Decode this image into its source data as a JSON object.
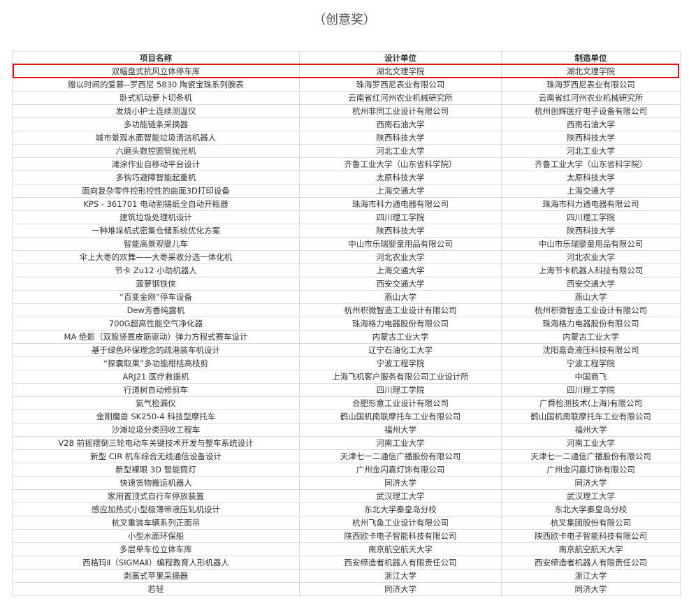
{
  "title": "（创意奖）",
  "highlight_color": "#e01010",
  "table": {
    "headers": [
      "项目名称",
      "设计单位",
      "制造单位"
    ],
    "highlighted_row": 0,
    "rows": [
      [
        "双幅盘式抗风立体停车库",
        "湖北文理学院",
        "湖北文理学院"
      ],
      [
        "赠以时间的爱慕--罗西尼 5830 陶瓷宝珠系列腕表",
        "珠海罗西尼表业有限公司",
        "珠海罗西尼表业有限公司"
      ],
      [
        "卧式机动萝卜切条机",
        "云南省红河州农业机械研究所",
        "云南省红河州农业机械研究所"
      ],
      [
        "发烧小护士连续测温仪",
        "杭州非同工业设计有限公司",
        "杭州创辉医疗电子设备有限公司"
      ],
      [
        "多功能链条采摘器",
        "西南石油大学",
        "西南石油大学"
      ],
      [
        "城市景观水面智能垃圾清洁机器人",
        "陕西科技大学",
        "陕西科技大学"
      ],
      [
        "六磨头数控圆管抛光机",
        "河北工业大学",
        "河北工业大学"
      ],
      [
        "滩涂作业自移动平台设计",
        "齐鲁工业大学（山东省科学院）",
        "齐鲁工业大学（山东省科学院）"
      ],
      [
        "多钩巧避障智能起重机",
        "太原科技大学",
        "太原科技大学"
      ],
      [
        "面向复杂零件控形控性的曲面3D打印设备",
        "上海交通大学",
        "上海交通大学"
      ],
      [
        "KPS - 361701 电动割锡纸全自动开瓶器",
        "珠海市科力通电器有限公司",
        "珠海市科力通电器有限公司"
      ],
      [
        "建筑垃圾处理机设计",
        "四川理工学院",
        "四川理工学院"
      ],
      [
        "一种堆垛机式密集仓储系统优化方案",
        "陕西科技大学",
        "陕西科技大学"
      ],
      [
        "智能高景观婴儿车",
        "中山市乐瑞婴童用品有限公司",
        "中山市乐瑞婴童用品有限公司"
      ],
      [
        "伞上大枣的欢舞——大枣采收分选一体化机",
        "河北农业大学",
        "河北农业大学"
      ],
      [
        "节卡 Zu12 小助机器人",
        "上海交通大学",
        "上海节卡机器人科技有限公司"
      ],
      [
        "菠萝钢铁侠",
        "西安交通大学",
        "西安交通大学"
      ],
      [
        "“百变金刚”停车设备",
        "燕山大学",
        "燕山大学"
      ],
      [
        "Dew芳香纯露机",
        "杭州积微智造工业设计有限公司",
        "杭州积微智造工业设计有限公司"
      ],
      [
        "700G超高性能空气净化器",
        "珠海格力电器股份有限公司",
        "珠海格力电器股份有限公司"
      ],
      [
        "MA 绝影（双股竖置皮筋驱动）弹力方程式赛车设计",
        "内蒙古工业大学",
        "内蒙古工业大学"
      ],
      [
        "基于绿色环保理念的疏港装车机设计",
        "辽宁石油化工大学",
        "沈阳嘉奇液压科技有限公司"
      ],
      [
        "“探囊取果”多功能柑桔高枝剪",
        "宁波工程学院",
        "宁波工程学院"
      ],
      [
        "ARJ21 医疗救援机",
        "上海飞机客户服务有限公司工业设计所",
        "中国商飞"
      ],
      [
        "行道树自动修剪车",
        "四川理工学院",
        "四川理工学院"
      ],
      [
        "氦气检漏仪",
        "合肥形意工业设计有限公司",
        "广舜检测技术(上海)有限公司"
      ],
      [
        "金刚魔兽 SK250-4 科技型摩托车",
        "鹤山国机南联摩托车工业有限公司",
        "鹤山国机南联摩托车工业有限公司"
      ],
      [
        "沙滩垃圾分类回收工程车",
        "福州大学",
        "福州大学"
      ],
      [
        "V28 前摇摆倒三轮电动车关键技术开发与整车系统设计",
        "河南工业大学",
        "河南工业大学"
      ],
      [
        "新型 CIR 机车综合无线通信设备设计",
        "天津七一二通信广播股份有限公司",
        "天津七一二通信广播股份有限公司"
      ],
      [
        "新型裸眼 3D 智能筒灯",
        "广州金闪嘉灯饰有限公司",
        "广州金闪嘉灯饰有限公司"
      ],
      [
        "快速货物搬运机器人",
        "同济大学",
        "同济大学"
      ],
      [
        "家用置顶式自行车停放装置",
        "武汉理工大学",
        "武汉理工大学"
      ],
      [
        "感应加热式小型极薄带液压轧机设计",
        "东北大学秦皇岛分校",
        "东北大学秦皇岛分校"
      ],
      [
        "杭叉重装车辆系列正面吊",
        "杭州飞鱼工业设计有限公司",
        "杭叉集团股份有限公司"
      ],
      [
        "小型水面环保船",
        "陕西欧卡电子智能科技有限公司",
        "陕西欧卡电子智能科技有限公司"
      ],
      [
        "多层单车位立体车库",
        "南京航空航天大学",
        "南京航空航天大学"
      ],
      [
        "西格玛Ⅱ（SIGMAⅡ）编程教育人形机器人",
        "西安缔造者机器人有限责任公司",
        "西安缔造者机器人有限责任公司"
      ],
      [
        "剥离式苹果采摘器",
        "浙江大学",
        "浙江大学"
      ],
      [
        "若轻",
        "同济大学",
        "同济大学"
      ]
    ]
  }
}
